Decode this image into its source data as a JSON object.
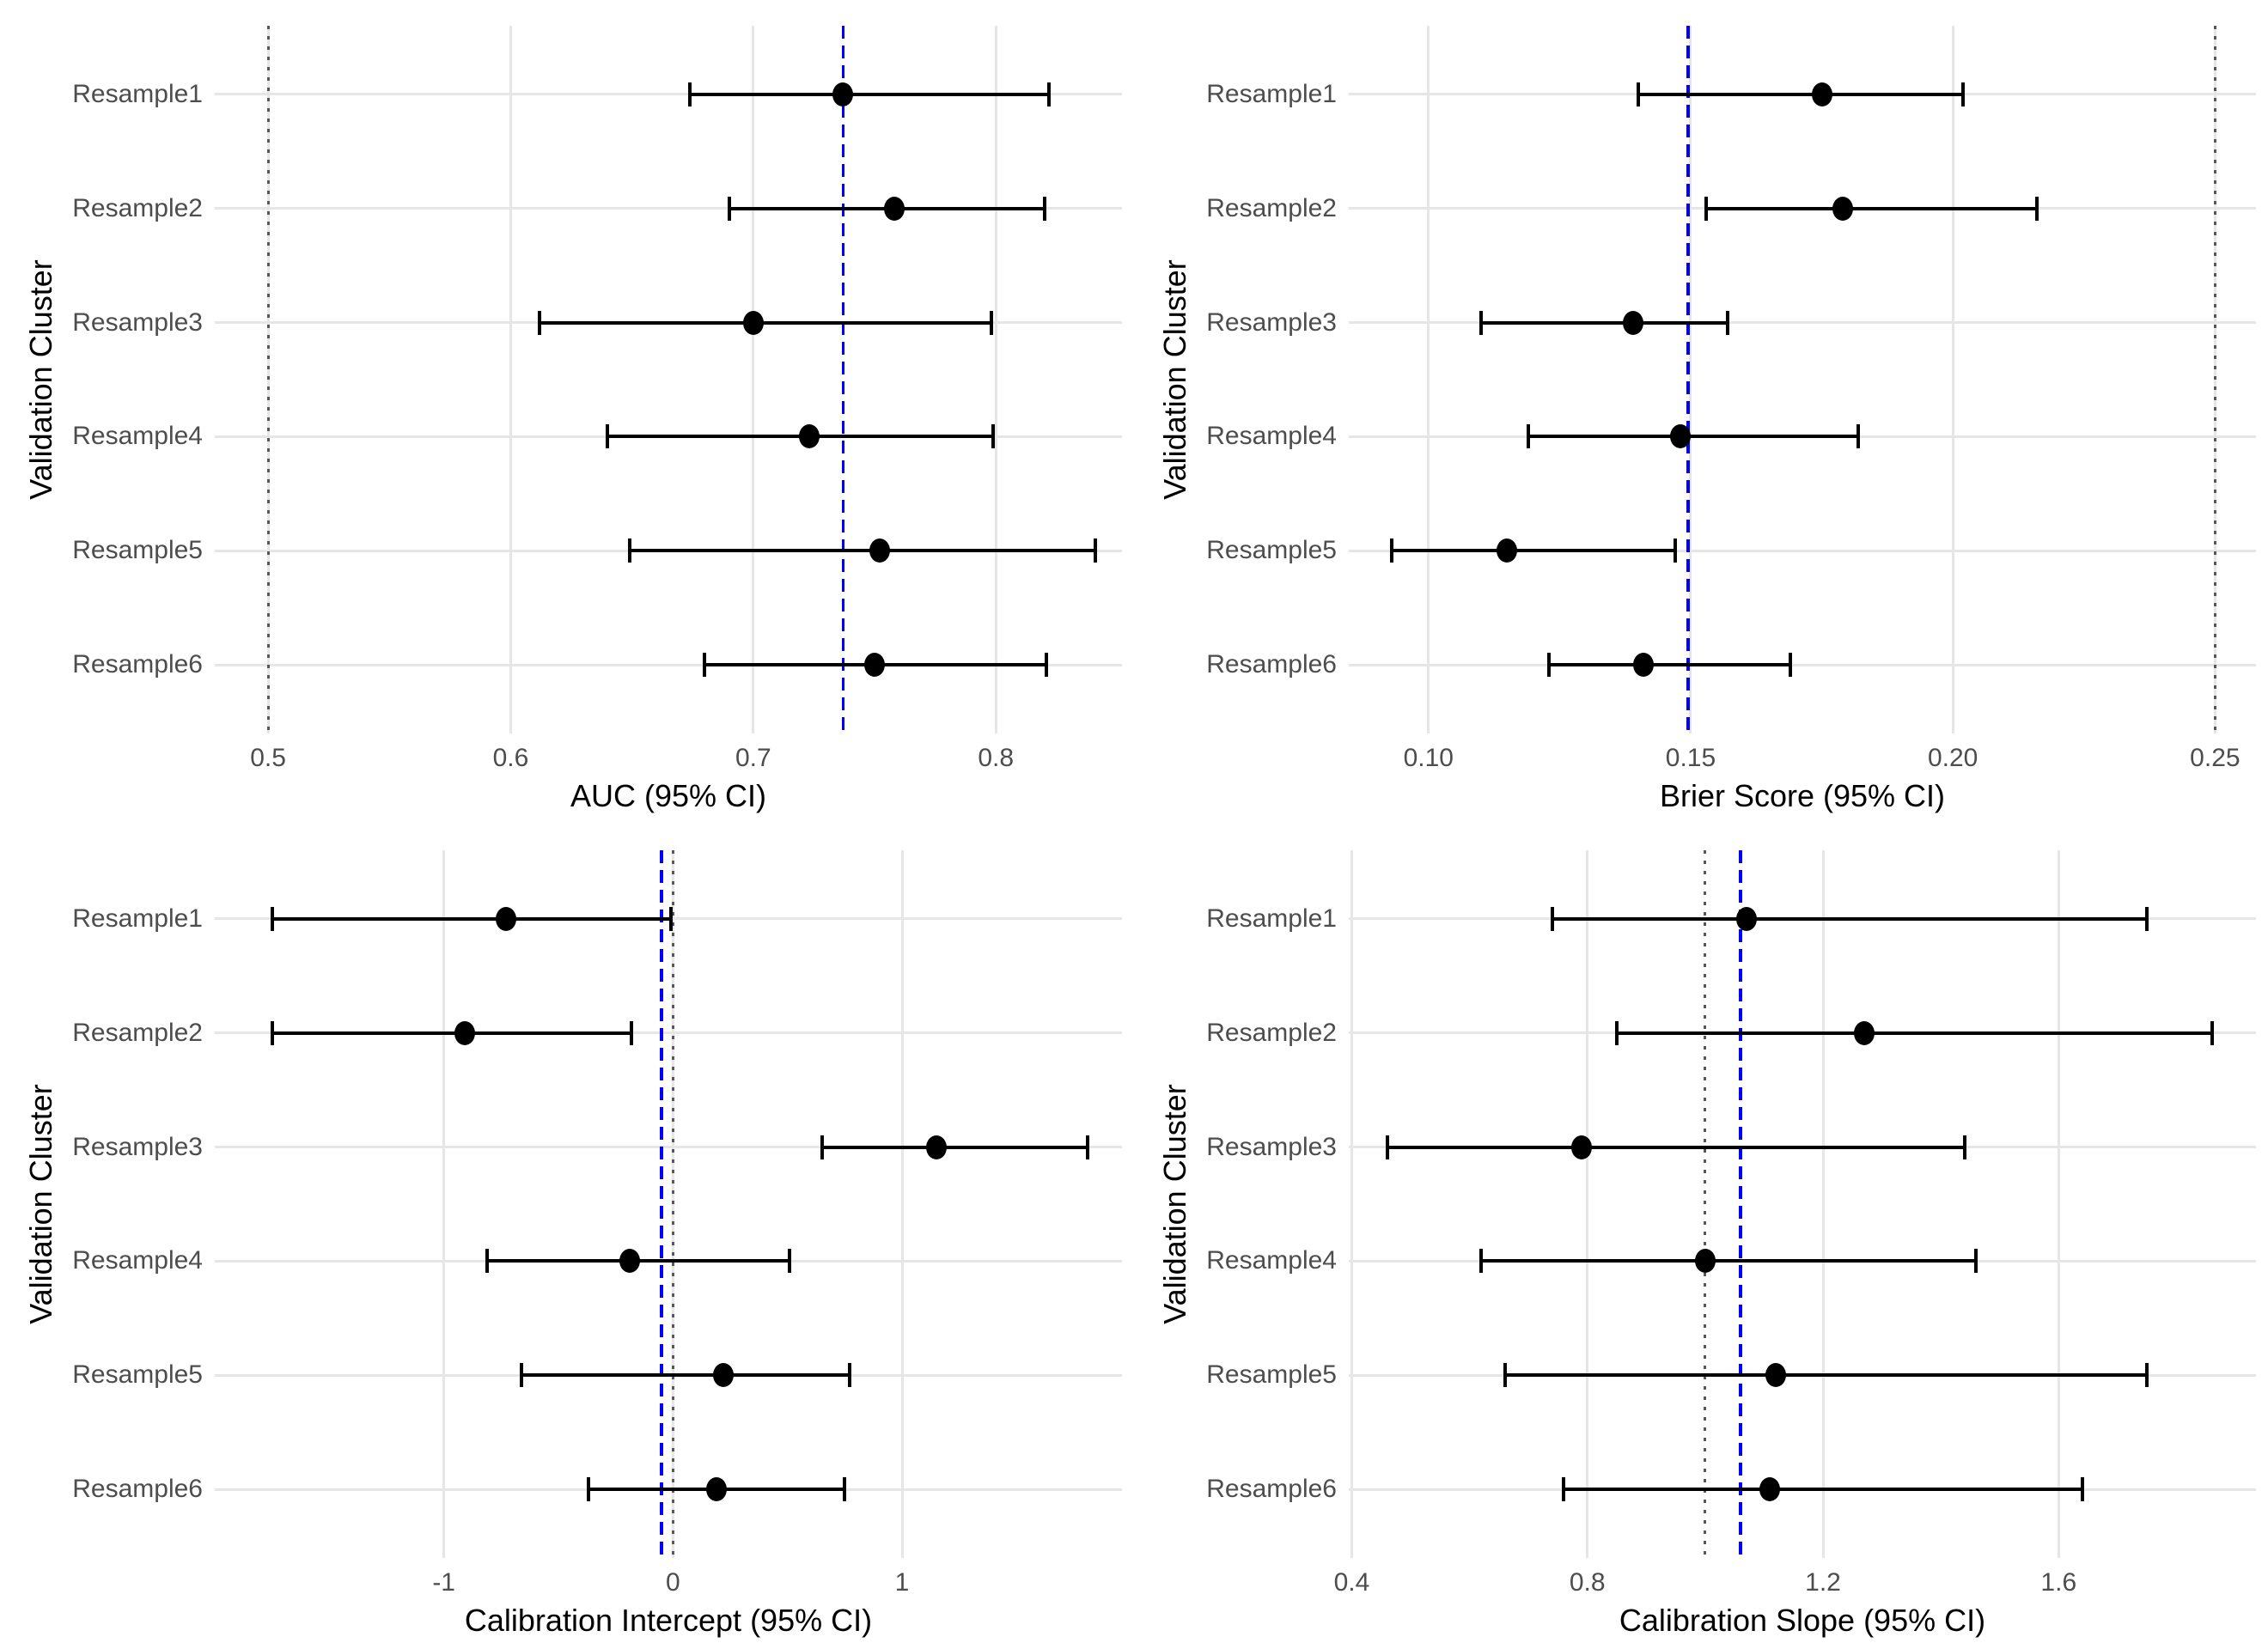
{
  "figure_title": "",
  "colors": {
    "background": "#FFFFFF",
    "grid": "#E6E6E6",
    "point": "#000000",
    "ci": "#000000",
    "dashed_reference": "#0000FF",
    "dotted_reference": "#575757",
    "tick_text": "#4D4D4D",
    "title_text": "#000000"
  },
  "chart_data": [
    {
      "id": "auc",
      "type": "scatter",
      "subtype": "forest-errorbar",
      "xlabel": "AUC (95% CI)",
      "ylabel": "Validation Cluster",
      "categories": [
        "Resample1",
        "Resample2",
        "Resample3",
        "Resample4",
        "Resample5",
        "Resample6"
      ],
      "xlim": [
        0.478,
        0.852
      ],
      "ticks": [
        0.5,
        0.6,
        0.7,
        0.8
      ],
      "tick_labels": [
        "0.5",
        "0.6",
        "0.7",
        "0.8"
      ],
      "grid": "major-only",
      "legend_position": "none",
      "reference_line_dotted": 0.5,
      "reference_line_dashed": 0.737,
      "points": [
        {
          "category": "Resample1",
          "x": 0.737,
          "lo": 0.674,
          "hi": 0.822
        },
        {
          "category": "Resample2",
          "x": 0.758,
          "lo": 0.69,
          "hi": 0.82
        },
        {
          "category": "Resample3",
          "x": 0.7,
          "lo": 0.612,
          "hi": 0.798
        },
        {
          "category": "Resample4",
          "x": 0.723,
          "lo": 0.64,
          "hi": 0.799
        },
        {
          "category": "Resample5",
          "x": 0.752,
          "lo": 0.649,
          "hi": 0.841
        },
        {
          "category": "Resample6",
          "x": 0.75,
          "lo": 0.68,
          "hi": 0.821
        }
      ]
    },
    {
      "id": "brier",
      "type": "scatter",
      "subtype": "forest-errorbar",
      "xlabel": "Brier Score (95% CI)",
      "ylabel": "Validation Cluster",
      "categories": [
        "Resample1",
        "Resample2",
        "Resample3",
        "Resample4",
        "Resample5",
        "Resample6"
      ],
      "xlim": [
        0.0848,
        0.2578
      ],
      "ticks": [
        0.1,
        0.15,
        0.2,
        0.25
      ],
      "tick_labels": [
        "0.10",
        "0.15",
        "0.20",
        "0.25"
      ],
      "grid": "major-only",
      "legend_position": "none",
      "reference_line_dotted": 0.25,
      "reference_line_dashed": 0.1495,
      "points": [
        {
          "category": "Resample1",
          "x": 0.175,
          "lo": 0.14,
          "hi": 0.202
        },
        {
          "category": "Resample2",
          "x": 0.179,
          "lo": 0.153,
          "hi": 0.216
        },
        {
          "category": "Resample3",
          "x": 0.139,
          "lo": 0.11,
          "hi": 0.157
        },
        {
          "category": "Resample4",
          "x": 0.148,
          "lo": 0.119,
          "hi": 0.182
        },
        {
          "category": "Resample5",
          "x": 0.115,
          "lo": 0.093,
          "hi": 0.147
        },
        {
          "category": "Resample6",
          "x": 0.141,
          "lo": 0.123,
          "hi": 0.169
        }
      ]
    },
    {
      "id": "calibration-intercept",
      "type": "scatter",
      "subtype": "forest-errorbar",
      "xlabel": "Calibration Intercept (95% CI)",
      "ylabel": "Validation Cluster",
      "categories": [
        "Resample1",
        "Resample2",
        "Resample3",
        "Resample4",
        "Resample5",
        "Resample6"
      ],
      "xlim": [
        -2.0,
        1.96
      ],
      "ticks": [
        -1,
        0,
        1
      ],
      "tick_labels": [
        "-1",
        "0",
        "1"
      ],
      "grid": "major-only",
      "legend_position": "none",
      "reference_line_dotted": 0.0,
      "reference_line_dashed": -0.05,
      "points": [
        {
          "category": "Resample1",
          "x": -0.73,
          "lo": -1.75,
          "hi": -0.01
        },
        {
          "category": "Resample2",
          "x": -0.91,
          "lo": -1.75,
          "hi": -0.18
        },
        {
          "category": "Resample3",
          "x": 1.15,
          "lo": 0.65,
          "hi": 1.81
        },
        {
          "category": "Resample4",
          "x": -0.19,
          "lo": -0.81,
          "hi": 0.51
        },
        {
          "category": "Resample5",
          "x": 0.22,
          "lo": -0.66,
          "hi": 0.77
        },
        {
          "category": "Resample6",
          "x": 0.19,
          "lo": -0.37,
          "hi": 0.75
        }
      ]
    },
    {
      "id": "calibration-slope",
      "type": "scatter",
      "subtype": "forest-errorbar",
      "xlabel": "Calibration Slope (95% CI)",
      "ylabel": "Validation Cluster",
      "categories": [
        "Resample1",
        "Resample2",
        "Resample3",
        "Resample4",
        "Resample5",
        "Resample6"
      ],
      "xlim": [
        0.395,
        1.935
      ],
      "ticks": [
        0.4,
        0.8,
        1.2,
        1.6
      ],
      "tick_labels": [
        "0.4",
        "0.8",
        "1.2",
        "1.6"
      ],
      "grid": "major-only",
      "legend_position": "none",
      "reference_line_dotted": 1.0,
      "reference_line_dashed": 1.06,
      "points": [
        {
          "category": "Resample1",
          "x": 1.07,
          "lo": 0.74,
          "hi": 1.75
        },
        {
          "category": "Resample2",
          "x": 1.27,
          "lo": 0.85,
          "hi": 1.86
        },
        {
          "category": "Resample3",
          "x": 0.79,
          "lo": 0.46,
          "hi": 1.44
        },
        {
          "category": "Resample4",
          "x": 1.0,
          "lo": 0.62,
          "hi": 1.46
        },
        {
          "category": "Resample5",
          "x": 1.12,
          "lo": 0.66,
          "hi": 1.75
        },
        {
          "category": "Resample6",
          "x": 1.11,
          "lo": 0.76,
          "hi": 1.64
        }
      ]
    }
  ]
}
